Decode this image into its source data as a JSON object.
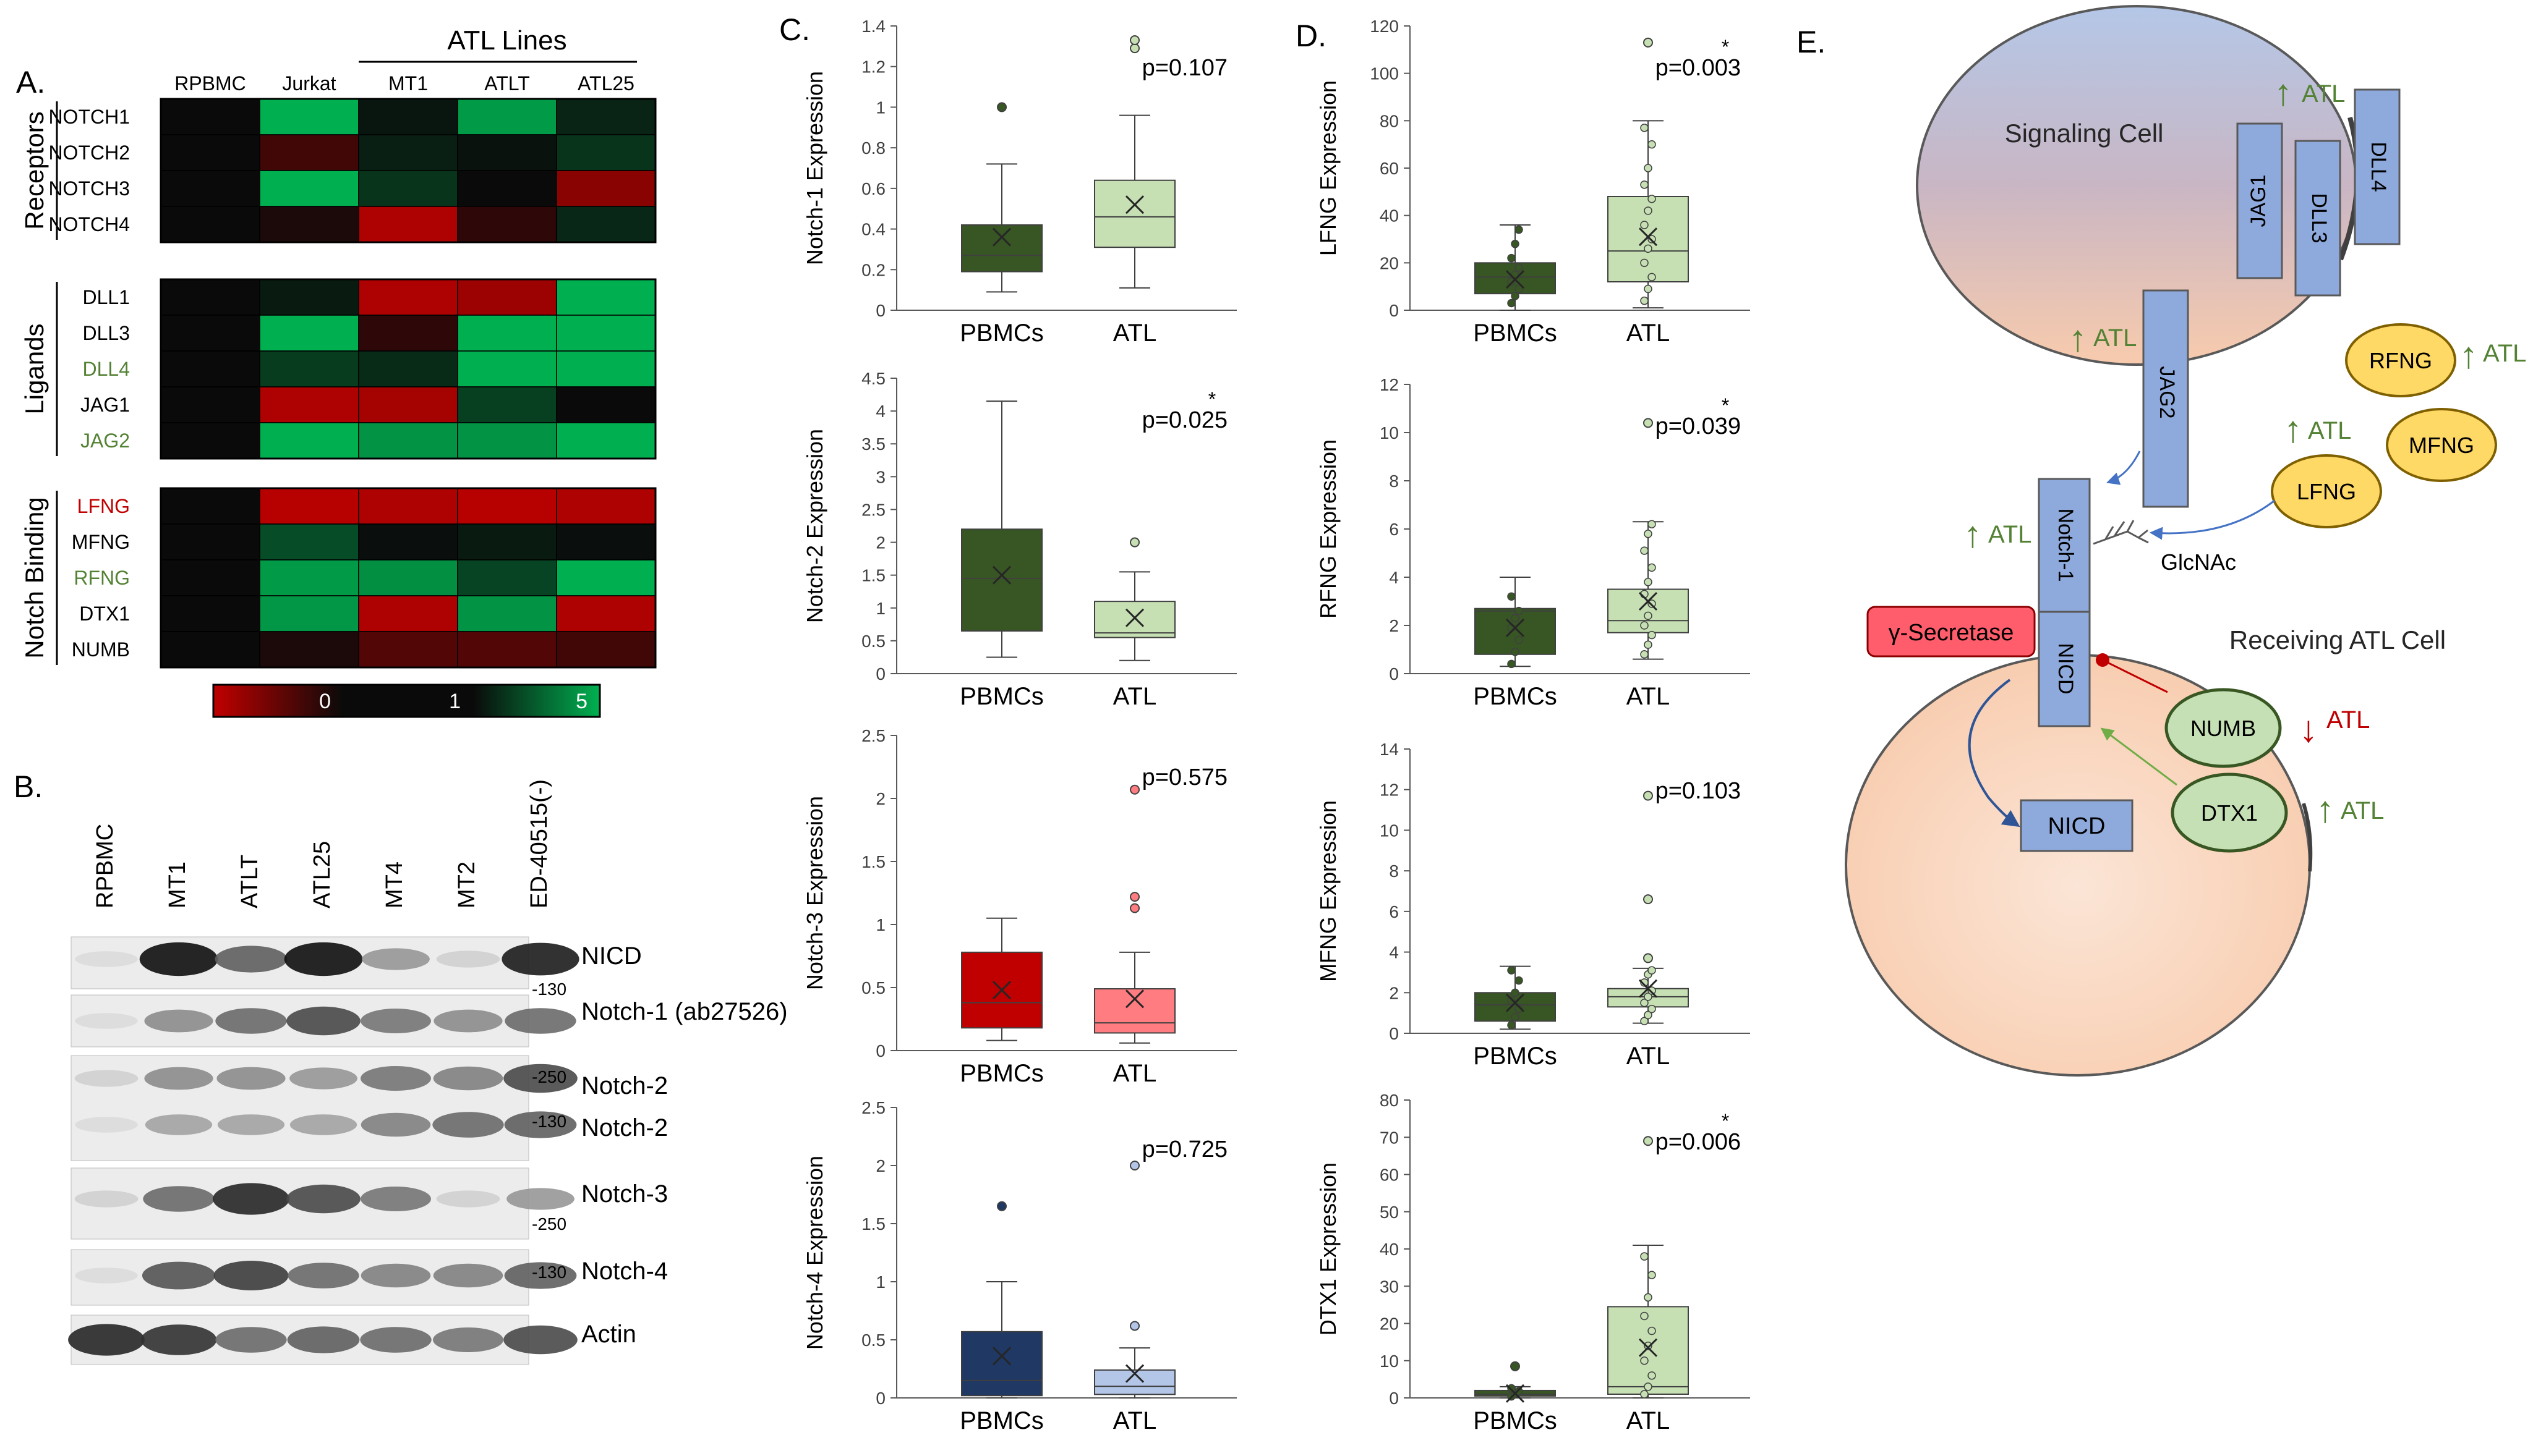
{
  "panel_letters": {
    "a": "A.",
    "b": "B.",
    "c": "C.",
    "d": "D.",
    "e": "E."
  },
  "colors": {
    "heat_red": "#c00000",
    "heat_black": "#0a0a0a",
    "heat_green": "#00b050",
    "pbmc_green": "#375623",
    "atl_green": "#c6e0b4",
    "notch3_red": "#c00000",
    "notch3_pink": "#ff7c80",
    "notch4_navy": "#1f3864",
    "notch4_light": "#b4c6e7",
    "label_red": "#c00000",
    "label_green": "#548235",
    "arrow_green": "#548235",
    "arrow_red": "#c00000",
    "receptor_fill": "#8ea9db",
    "fringe_fill": "#ffd966",
    "numb_fill": "#c5e0b4",
    "secretase_fill": "#ff5c6c"
  },
  "heatmap": {
    "atl_lines_label": "ATL Lines",
    "columns": [
      "RPBMC",
      "Jurkat",
      "MT1",
      "ATLT",
      "ATL25"
    ],
    "groups": [
      {
        "name": "Receptors",
        "rows": [
          {
            "label": "NOTCH1",
            "label_color": "black",
            "values": [
              1,
              5,
              1.3,
              4.5,
              1.6
            ]
          },
          {
            "label": "NOTCH2",
            "label_color": "black",
            "values": [
              1,
              0.7,
              1.5,
              1.2,
              2
            ]
          },
          {
            "label": "NOTCH3",
            "label_color": "black",
            "values": [
              1,
              5,
              2,
              1,
              0.3
            ]
          },
          {
            "label": "NOTCH4",
            "label_color": "black",
            "values": [
              1,
              0.9,
              0.1,
              0.8,
              1.7
            ]
          }
        ]
      },
      {
        "name": "Ligands",
        "rows": [
          {
            "label": "DLL1",
            "label_color": "black",
            "values": [
              1,
              1.4,
              0.1,
              0.2,
              5
            ]
          },
          {
            "label": "DLL3",
            "label_color": "black",
            "values": [
              1,
              5,
              0.8,
              5,
              5
            ]
          },
          {
            "label": "DLL4",
            "label_color": "green",
            "values": [
              1,
              2.2,
              1.8,
              5,
              5
            ]
          },
          {
            "label": "JAG1",
            "label_color": "black",
            "values": [
              1,
              0.1,
              0.15,
              2.3,
              1
            ]
          },
          {
            "label": "JAG2",
            "label_color": "green",
            "values": [
              1,
              5,
              4.3,
              4.3,
              5
            ]
          }
        ]
      },
      {
        "name": "Notch Binding",
        "rows": [
          {
            "label": "LFNG",
            "label_color": "red",
            "values": [
              1,
              0.05,
              0.1,
              0.05,
              0.1
            ]
          },
          {
            "label": "MFNG",
            "label_color": "black",
            "values": [
              1,
              2.6,
              1.1,
              1.4,
              1.1
            ]
          },
          {
            "label": "RFNG",
            "label_color": "green",
            "values": [
              1,
              4.5,
              4.2,
              2.4,
              5
            ]
          },
          {
            "label": "DTX1",
            "label_color": "black",
            "values": [
              1,
              4.4,
              0.1,
              4.3,
              0.1
            ]
          },
          {
            "label": "NUMB",
            "label_color": "black",
            "values": [
              1,
              0.9,
              0.6,
              0.6,
              0.7
            ]
          }
        ]
      }
    ],
    "scale_labels": [
      "0",
      "1",
      "5"
    ]
  },
  "western": {
    "lanes": [
      "RPBMC",
      "MT1",
      "ATLT",
      "ATL25",
      "MT4",
      "MT2",
      "ED-40515(-)"
    ],
    "bands": [
      {
        "label": "NICD",
        "marker": "-130",
        "intensity": [
          0.05,
          0.95,
          0.6,
          0.95,
          0.35,
          0.1,
          0.9
        ]
      },
      {
        "label": "Notch-1 (ab27526)",
        "marker": "",
        "intensity": [
          0.05,
          0.4,
          0.55,
          0.7,
          0.5,
          0.4,
          0.55
        ]
      },
      {
        "label": "Notch-2",
        "marker": "-250",
        "intensity": [
          0.1,
          0.4,
          0.4,
          0.35,
          0.5,
          0.45,
          0.7
        ]
      },
      {
        "label": "Notch-2",
        "marker": "-130",
        "intensity": [
          0.05,
          0.3,
          0.3,
          0.3,
          0.45,
          0.55,
          0.6
        ]
      },
      {
        "label": "Notch-3",
        "marker": "-250",
        "intensity": [
          0.1,
          0.55,
          0.85,
          0.7,
          0.5,
          0.1,
          0.35
        ]
      },
      {
        "label": "Notch-4",
        "marker": "-130",
        "intensity": [
          0.05,
          0.65,
          0.75,
          0.55,
          0.45,
          0.45,
          0.6
        ]
      },
      {
        "label": "Actin",
        "marker": "",
        "intensity": [
          0.85,
          0.8,
          0.55,
          0.6,
          0.55,
          0.5,
          0.7
        ]
      }
    ]
  },
  "chart_data": [
    {
      "type": "box",
      "panel": "C",
      "ylabel": "Notch-1 Expression",
      "categories": [
        "PBMCs",
        "ATL"
      ],
      "ylim": [
        0,
        1.4
      ],
      "ticks": [
        0,
        0.2,
        0.4,
        0.6,
        0.8,
        1,
        1.2,
        1.4
      ],
      "tick_labels": [
        "0",
        "0.2",
        "0.4",
        "0.6",
        "0.8",
        "1",
        "1.2",
        "1.4"
      ],
      "pvalue": "p=0.107",
      "star": "",
      "boxes": [
        {
          "name": "PBMCs",
          "min": 0.09,
          "q1": 0.19,
          "median": 0.27,
          "q3": 0.42,
          "max": 0.72,
          "mean": 0.36,
          "fill": "#375623",
          "outliers": [
            1.0
          ],
          "points": []
        },
        {
          "name": "ATL",
          "min": 0.11,
          "q1": 0.31,
          "median": 0.46,
          "q3": 0.64,
          "max": 0.96,
          "mean": 0.52,
          "fill": "#c6e0b4",
          "outliers": [
            1.29,
            1.33
          ],
          "points": []
        }
      ]
    },
    {
      "type": "box",
      "panel": "C",
      "ylabel": "Notch-2 Expression",
      "categories": [
        "PBMCs",
        "ATL"
      ],
      "ylim": [
        0,
        4.5
      ],
      "ticks": [
        0,
        0.5,
        1,
        1.5,
        2,
        2.5,
        3,
        3.5,
        4,
        4.5
      ],
      "tick_labels": [
        "0",
        "0.5",
        "1",
        "1.5",
        "2",
        "2.5",
        "3",
        "3.5",
        "4",
        "4.5"
      ],
      "pvalue": "p=0.025",
      "star": "*",
      "boxes": [
        {
          "name": "PBMCs",
          "min": 0.25,
          "q1": 0.65,
          "median": 1.45,
          "q3": 2.2,
          "max": 4.15,
          "mean": 1.5,
          "fill": "#375623",
          "outliers": [],
          "points": []
        },
        {
          "name": "ATL",
          "min": 0.2,
          "q1": 0.55,
          "median": 0.62,
          "q3": 1.1,
          "max": 1.55,
          "mean": 0.85,
          "fill": "#c6e0b4",
          "outliers": [
            2.0
          ],
          "points": []
        }
      ]
    },
    {
      "type": "box",
      "panel": "C",
      "ylabel": "Notch-3 Expression",
      "categories": [
        "PBMCs",
        "ATL"
      ],
      "ylim": [
        0,
        2.5
      ],
      "ticks": [
        0,
        0.5,
        1,
        1.5,
        2,
        2.5
      ],
      "tick_labels": [
        "0",
        "0.5",
        "1",
        "1.5",
        "2",
        "2.5"
      ],
      "pvalue": "p=0.575",
      "star": "",
      "boxes": [
        {
          "name": "PBMCs",
          "min": 0.08,
          "q1": 0.18,
          "median": 0.38,
          "q3": 0.78,
          "max": 1.05,
          "mean": 0.48,
          "fill": "#c00000",
          "outliers": [],
          "points": []
        },
        {
          "name": "ATL",
          "min": 0.06,
          "q1": 0.14,
          "median": 0.22,
          "q3": 0.49,
          "max": 0.78,
          "mean": 0.41,
          "fill": "#ff7c80",
          "outliers": [
            1.13,
            1.22,
            2.07
          ],
          "points": []
        }
      ]
    },
    {
      "type": "box",
      "panel": "C",
      "ylabel": "Notch-4 Expression",
      "categories": [
        "PBMCs",
        "ATL"
      ],
      "ylim": [
        0,
        2.5
      ],
      "ticks": [
        0,
        0.5,
        1,
        1.5,
        2,
        2.5
      ],
      "tick_labels": [
        "0",
        "0.5",
        "1",
        "1.5",
        "2",
        "2.5"
      ],
      "pvalue": "p=0.725",
      "star": "",
      "boxes": [
        {
          "name": "PBMCs",
          "min": 0.0,
          "q1": 0.02,
          "median": 0.15,
          "q3": 0.57,
          "max": 1.0,
          "mean": 0.36,
          "fill": "#1f3864",
          "outliers": [
            1.65
          ],
          "points": []
        },
        {
          "name": "ATL",
          "min": 0.0,
          "q1": 0.03,
          "median": 0.1,
          "q3": 0.24,
          "max": 0.43,
          "mean": 0.21,
          "fill": "#b4c6e7",
          "outliers": [
            0.62,
            2.0
          ],
          "points": []
        }
      ]
    },
    {
      "type": "box",
      "panel": "D",
      "ylabel": "LFNG Expression",
      "categories": [
        "PBMCs",
        "ATL"
      ],
      "ylim": [
        0,
        120
      ],
      "ticks": [
        0,
        20,
        40,
        60,
        80,
        100,
        120
      ],
      "tick_labels": [
        "0",
        "20",
        "40",
        "60",
        "80",
        "100",
        "120"
      ],
      "pvalue": "p=0.003",
      "star": "*",
      "boxes": [
        {
          "name": "PBMCs",
          "min": 0,
          "q1": 7,
          "median": 14,
          "q3": 20,
          "max": 36,
          "mean": 13,
          "fill": "#375623",
          "outliers": [],
          "points": [
            3,
            6,
            9,
            12,
            15,
            18,
            22,
            28,
            34
          ]
        },
        {
          "name": "ATL",
          "min": 1,
          "q1": 12,
          "median": 25,
          "q3": 48,
          "max": 80,
          "mean": 31,
          "fill": "#c6e0b4",
          "outliers": [
            113
          ],
          "points": [
            4,
            9,
            14,
            20,
            26,
            30,
            36,
            42,
            47,
            53,
            60,
            70,
            77
          ]
        }
      ]
    },
    {
      "type": "box",
      "panel": "D",
      "ylabel": "RFNG Expression",
      "categories": [
        "PBMCs",
        "ATL"
      ],
      "ylim": [
        0,
        12
      ],
      "ticks": [
        0,
        2,
        4,
        6,
        8,
        10,
        12
      ],
      "tick_labels": [
        "0",
        "2",
        "4",
        "6",
        "8",
        "10",
        "12"
      ],
      "pvalue": "p=0.039",
      "star": "*",
      "boxes": [
        {
          "name": "PBMCs",
          "min": 0.3,
          "q1": 0.8,
          "median": 2.6,
          "q3": 2.7,
          "max": 4.0,
          "mean": 1.9,
          "fill": "#375623",
          "outliers": [],
          "points": [
            0.4,
            0.9,
            1.4,
            1.9,
            2.3,
            2.6,
            3.2
          ]
        },
        {
          "name": "ATL",
          "min": 0.6,
          "q1": 1.7,
          "median": 2.2,
          "q3": 3.5,
          "max": 6.3,
          "mean": 3.0,
          "fill": "#c6e0b4",
          "outliers": [
            10.4
          ],
          "points": [
            0.8,
            1.2,
            1.6,
            2.0,
            2.4,
            2.9,
            3.3,
            3.8,
            4.4,
            5.1,
            5.8,
            6.2
          ]
        }
      ]
    },
    {
      "type": "box",
      "panel": "D",
      "ylabel": "MFNG Expression",
      "categories": [
        "PBMCs",
        "ATL"
      ],
      "ylim": [
        0,
        14
      ],
      "ticks": [
        0,
        2,
        4,
        6,
        8,
        10,
        12,
        14
      ],
      "tick_labels": [
        "0",
        "2",
        "4",
        "6",
        "8",
        "10",
        "12",
        "14"
      ],
      "pvalue": "p=0.103",
      "star": "",
      "boxes": [
        {
          "name": "PBMCs",
          "min": 0.2,
          "q1": 0.6,
          "median": 1.4,
          "q3": 2.0,
          "max": 3.3,
          "mean": 1.5,
          "fill": "#375623",
          "outliers": [],
          "points": [
            0.4,
            0.8,
            1.2,
            1.6,
            2.0,
            2.6,
            3.1
          ]
        },
        {
          "name": "ATL",
          "min": 0.5,
          "q1": 1.3,
          "median": 1.8,
          "q3": 2.2,
          "max": 3.2,
          "mean": 2.2,
          "fill": "#c6e0b4",
          "outliers": [
            3.7,
            6.6,
            11.7
          ],
          "points": [
            0.6,
            0.9,
            1.2,
            1.5,
            1.8,
            2.1,
            2.5,
            2.9,
            3.1
          ]
        }
      ]
    },
    {
      "type": "box",
      "panel": "D",
      "ylabel": "DTX1 Expression",
      "categories": [
        "PBMCs",
        "ATL"
      ],
      "ylim": [
        0,
        80
      ],
      "ticks": [
        0,
        10,
        20,
        30,
        40,
        50,
        60,
        70,
        80
      ],
      "tick_labels": [
        "0",
        "10",
        "20",
        "30",
        "40",
        "50",
        "60",
        "70",
        "80"
      ],
      "pvalue": "p=0.006",
      "star": "*",
      "boxes": [
        {
          "name": "PBMCs",
          "min": 0,
          "q1": 0.5,
          "median": 1,
          "q3": 2,
          "max": 3,
          "mean": 1.2,
          "fill": "#375623",
          "outliers": [
            8.5
          ],
          "points": [
            0.4,
            1.0,
            1.8,
            2.6
          ]
        },
        {
          "name": "ATL",
          "min": 0,
          "q1": 1,
          "median": 3,
          "q3": 24.5,
          "max": 41,
          "mean": 13.5,
          "fill": "#c6e0b4",
          "outliers": [
            69
          ],
          "points": [
            1,
            3,
            6,
            10,
            14,
            18,
            22,
            27,
            33,
            38
          ]
        }
      ]
    }
  ],
  "diagram": {
    "signaling_cell": "Signaling Cell",
    "receiving_cell": "Receiving ATL Cell",
    "atl": "ATL",
    "up_arrow": "↑",
    "down_arrow": "↓",
    "jag1": "JAG1",
    "dll3": "DLL3",
    "dll4": "DLL4",
    "jag2": "JAG2",
    "rfng": "RFNG",
    "mfng": "MFNG",
    "lfng": "LFNG",
    "notch1": "Notch-1",
    "nicd": "NICD",
    "glcnac": "GlcNAc",
    "secretase": "γ-Secretase",
    "numb": "NUMB",
    "dtx1": "DTX1"
  }
}
